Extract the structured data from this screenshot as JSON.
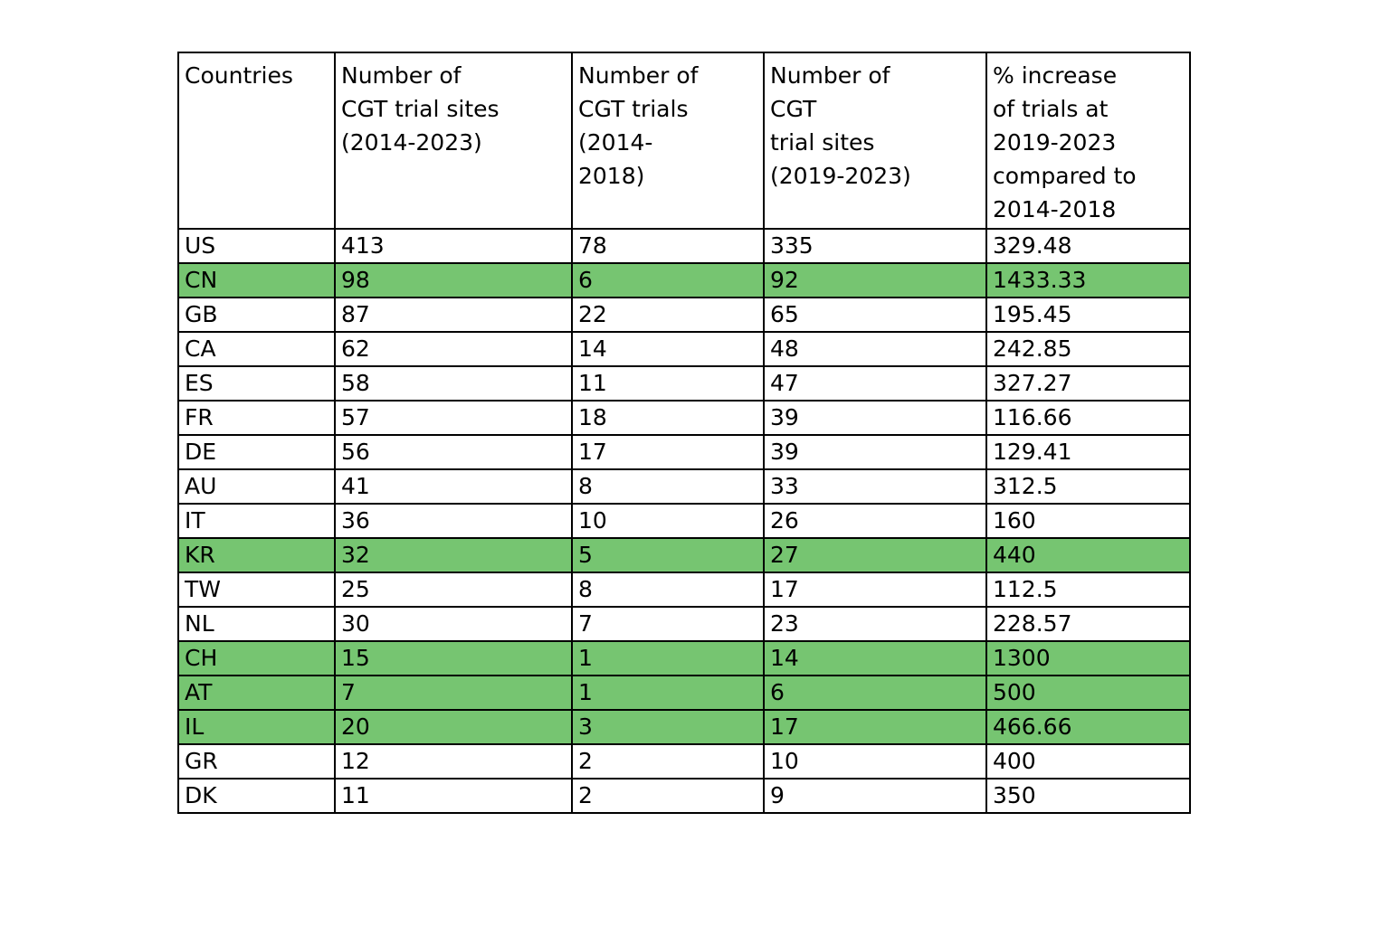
{
  "chart_data": {
    "type": "table",
    "columns": [
      "Countries",
      "Number of\nCGT trial sites\n(2014-2023)",
      "Number of\nCGT trials\n(2014-\n2018)",
      "Number of\nCGT\ntrial sites\n(2019-2023)",
      "% increase\nof trials at\n2019-2023\ncompared to\n2014-2018"
    ],
    "rows": [
      {
        "cells": [
          "US",
          "413",
          "78",
          "335",
          "329.48"
        ],
        "highlighted": false
      },
      {
        "cells": [
          "CN",
          "98",
          "6",
          "92",
          "1433.33"
        ],
        "highlighted": true
      },
      {
        "cells": [
          "GB",
          "87",
          "22",
          "65",
          "195.45"
        ],
        "highlighted": false
      },
      {
        "cells": [
          "CA",
          "62",
          "14",
          "48",
          "242.85"
        ],
        "highlighted": false
      },
      {
        "cells": [
          "ES",
          "58",
          "11",
          "47",
          "327.27"
        ],
        "highlighted": false
      },
      {
        "cells": [
          "FR",
          "57",
          "18",
          "39",
          "116.66"
        ],
        "highlighted": false
      },
      {
        "cells": [
          "DE",
          "56",
          "17",
          "39",
          "129.41"
        ],
        "highlighted": false
      },
      {
        "cells": [
          "AU",
          "41",
          "8",
          "33",
          "312.5"
        ],
        "highlighted": false
      },
      {
        "cells": [
          "IT",
          "36",
          "10",
          "26",
          "160"
        ],
        "highlighted": false
      },
      {
        "cells": [
          "KR",
          "32",
          "5",
          "27",
          "440"
        ],
        "highlighted": true
      },
      {
        "cells": [
          "TW",
          "25",
          "8",
          "17",
          "112.5"
        ],
        "highlighted": false
      },
      {
        "cells": [
          "NL",
          "30",
          "7",
          "23",
          "228.57"
        ],
        "highlighted": false
      },
      {
        "cells": [
          "CH",
          "15",
          "1",
          "14",
          "1300"
        ],
        "highlighted": true
      },
      {
        "cells": [
          "AT",
          "7",
          "1",
          "6",
          "500"
        ],
        "highlighted": true
      },
      {
        "cells": [
          "IL",
          "20",
          "3",
          "17",
          "466.66"
        ],
        "highlighted": true
      },
      {
        "cells": [
          "GR",
          "12",
          "2",
          "10",
          "400"
        ],
        "highlighted": false
      },
      {
        "cells": [
          "DK",
          "11",
          "2",
          "9",
          "350"
        ],
        "highlighted": false
      }
    ],
    "highlighted_countries": [
      "CN",
      "KR",
      "CH",
      "AT",
      "IL"
    ],
    "colors": {
      "highlight": "#76c571",
      "border": "#000000",
      "background": "#ffffff",
      "text": "#000000"
    },
    "layout_hints": {
      "grid": "on",
      "header_rows": 1,
      "data_rows": 17
    }
  }
}
